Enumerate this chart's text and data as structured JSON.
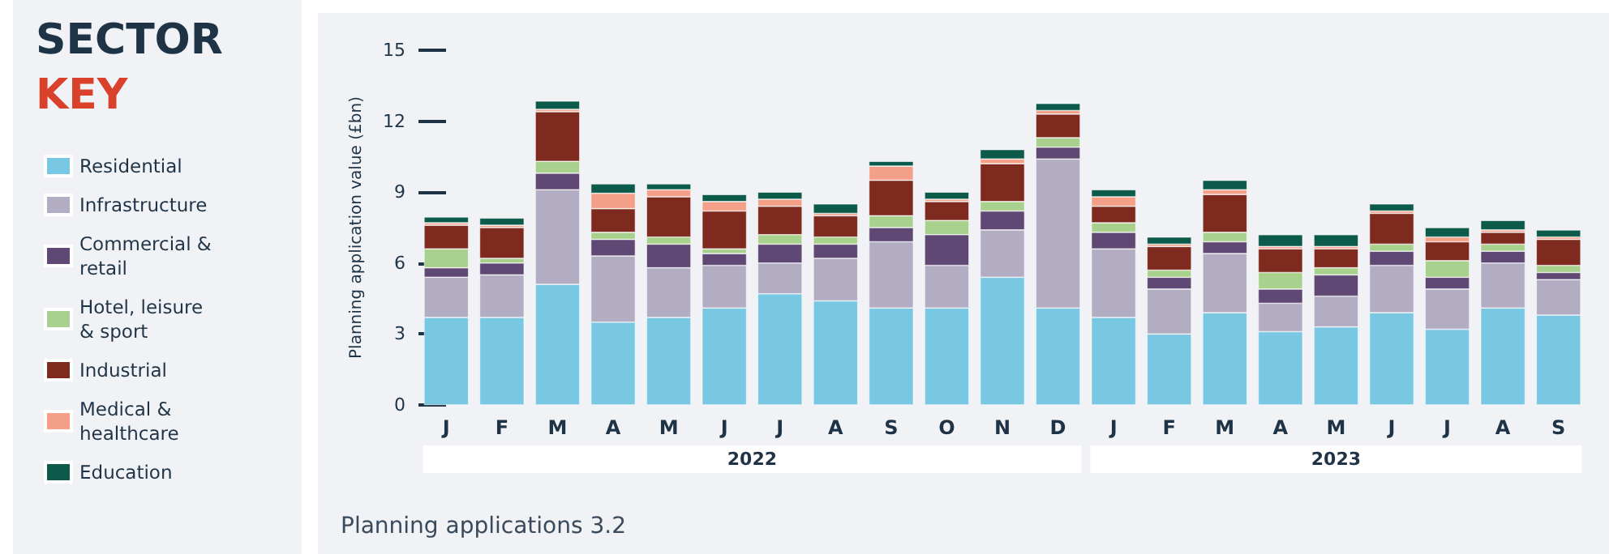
{
  "chart_data": {
    "type": "bar",
    "stacked": true,
    "legend_title": "SECTOR KEY",
    "legend": "left",
    "grid": false,
    "ylabel": "Planning application value (£bn)",
    "categories": [
      "J",
      "F",
      "M",
      "A",
      "M",
      "J",
      "J",
      "A",
      "S",
      "O",
      "N",
      "D",
      "J",
      "F",
      "M",
      "A",
      "M",
      "J",
      "J",
      "A",
      "S"
    ],
    "ylim": [
      0,
      15
    ],
    "yticks": [
      0,
      3,
      6,
      9,
      12,
      15
    ],
    "annotations": [
      "2022",
      "2023",
      "Planning applications 3.2"
    ],
    "series": [
      {
        "name": "Residential",
        "color": "#78c8e4",
        "values": [
          3.7,
          3.7,
          5.1,
          3.5,
          3.7,
          4.1,
          4.7,
          4.4,
          4.1,
          4.1,
          5.4,
          4.1,
          3.7,
          3.0,
          3.9,
          3.1,
          3.3,
          3.9,
          3.2,
          4.1,
          3.8
        ]
      },
      {
        "name": "Infrastructure",
        "color": "#b3adc4",
        "values": [
          1.7,
          1.8,
          4.0,
          2.8,
          2.1,
          1.8,
          1.3,
          1.8,
          2.8,
          1.8,
          2.0,
          6.3,
          2.9,
          1.9,
          2.5,
          1.2,
          1.3,
          2.0,
          1.7,
          1.9,
          1.5
        ]
      },
      {
        "name": "Commercial & retail",
        "color": "#5f4873",
        "values": [
          0.4,
          0.5,
          0.7,
          0.7,
          1.0,
          0.5,
          0.8,
          0.6,
          0.6,
          1.3,
          0.8,
          0.5,
          0.7,
          0.5,
          0.5,
          0.6,
          0.9,
          0.6,
          0.5,
          0.5,
          0.3
        ]
      },
      {
        "name": "Hotel, leisure & sport",
        "color": "#a9d18e",
        "values": [
          0.8,
          0.2,
          0.5,
          0.3,
          0.3,
          0.2,
          0.4,
          0.3,
          0.5,
          0.6,
          0.4,
          0.4,
          0.4,
          0.3,
          0.4,
          0.7,
          0.3,
          0.3,
          0.7,
          0.3,
          0.3
        ]
      },
      {
        "name": "Industrial",
        "color": "#7f2a1e",
        "values": [
          1.0,
          1.3,
          2.1,
          1.0,
          1.7,
          1.6,
          1.2,
          0.9,
          1.5,
          0.8,
          1.6,
          1.0,
          0.7,
          1.0,
          1.6,
          1.0,
          0.8,
          1.3,
          0.8,
          0.5,
          1.1
        ]
      },
      {
        "name": "Medical & healthcare",
        "color": "#f4a088",
        "values": [
          0.1,
          0.1,
          0.1,
          0.65,
          0.3,
          0.4,
          0.3,
          0.1,
          0.6,
          0.1,
          0.2,
          0.15,
          0.4,
          0.1,
          0.2,
          0.1,
          0.1,
          0.1,
          0.2,
          0.1,
          0.1
        ]
      },
      {
        "name": "Education",
        "color": "#0b5a4a",
        "values": [
          0.25,
          0.3,
          0.35,
          0.4,
          0.25,
          0.3,
          0.3,
          0.4,
          0.2,
          0.3,
          0.4,
          0.3,
          0.3,
          0.3,
          0.4,
          0.5,
          0.5,
          0.3,
          0.4,
          0.4,
          0.3
        ]
      }
    ]
  }
}
